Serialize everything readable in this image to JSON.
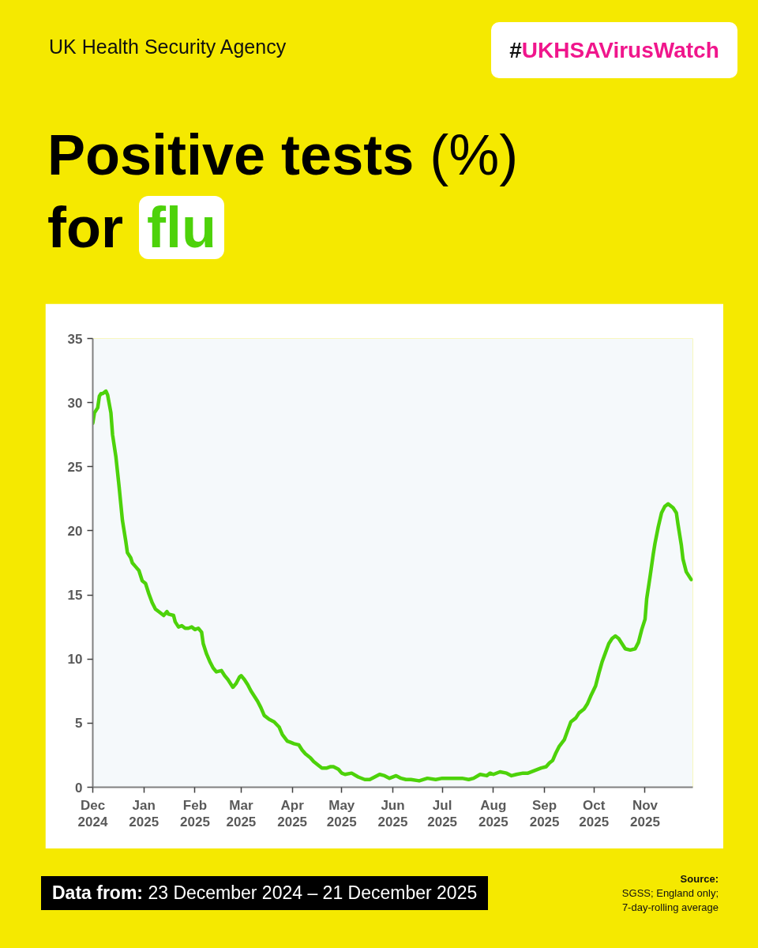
{
  "chart_data": {
    "type": "line",
    "title": "Positive tests (%)\nfor flu",
    "annotations": [
      "UK Health Security Agency",
      "#UKHSAVirusWatch",
      "Data from: 23 December 2024 – 21 December 2025",
      "Source:\nSGSS; England only;\n7-day-rolling average"
    ],
    "x": [
      "2024-12-01",
      "2024-12-02",
      "2024-12-04",
      "2024-12-05",
      "2024-12-06",
      "2024-12-07",
      "2024-12-09",
      "2024-12-10",
      "2024-12-12",
      "2024-12-13",
      "2024-12-15",
      "2024-12-17",
      "2024-12-18",
      "2024-12-19",
      "2024-12-21",
      "2024-12-22",
      "2024-12-24",
      "2024-12-25",
      "2024-12-27",
      "2024-12-29",
      "2024-12-31",
      "2025-01-02",
      "2025-01-04",
      "2025-01-06",
      "2025-01-08",
      "2025-01-11",
      "2025-01-13",
      "2025-01-15",
      "2025-01-16",
      "2025-01-19",
      "2025-01-20",
      "2025-01-22",
      "2025-01-24",
      "2025-01-26",
      "2025-01-28",
      "2025-01-30",
      "2025-02-01",
      "2025-02-03",
      "2025-02-05",
      "2025-02-06",
      "2025-02-08",
      "2025-02-10",
      "2025-02-12",
      "2025-02-14",
      "2025-02-17",
      "2025-02-19",
      "2025-02-21",
      "2025-02-23",
      "2025-02-24",
      "2025-02-26",
      "2025-02-28",
      "2025-03-01",
      "2025-03-03",
      "2025-03-05",
      "2025-03-07",
      "2025-03-09",
      "2025-03-11",
      "2025-03-13",
      "2025-03-15",
      "2025-03-18",
      "2025-03-21",
      "2025-03-24",
      "2025-03-26",
      "2025-03-29",
      "2025-03-31",
      "2025-04-02",
      "2025-04-05",
      "2025-04-07",
      "2025-04-09",
      "2025-04-12",
      "2025-04-14",
      "2025-04-17",
      "2025-04-19",
      "2025-04-22",
      "2025-04-24",
      "2025-04-26",
      "2025-04-29",
      "2025-05-01",
      "2025-05-03",
      "2025-05-07",
      "2025-05-11",
      "2025-05-15",
      "2025-05-18",
      "2025-05-21",
      "2025-05-24",
      "2025-05-27",
      "2025-05-30",
      "2025-06-03",
      "2025-06-06",
      "2025-06-09",
      "2025-06-12",
      "2025-06-17",
      "2025-06-22",
      "2025-06-27",
      "2025-07-01",
      "2025-07-06",
      "2025-07-13",
      "2025-07-17",
      "2025-07-20",
      "2025-07-24",
      "2025-07-28",
      "2025-07-30",
      "2025-08-01",
      "2025-08-05",
      "2025-08-09",
      "2025-08-12",
      "2025-08-15",
      "2025-08-19",
      "2025-08-22",
      "2025-08-26",
      "2025-08-30",
      "2025-09-02",
      "2025-09-04",
      "2025-09-06",
      "2025-09-08",
      "2025-09-10",
      "2025-09-13",
      "2025-09-15",
      "2025-09-17",
      "2025-09-20",
      "2025-09-22",
      "2025-09-25",
      "2025-09-27",
      "2025-09-29",
      "2025-10-02",
      "2025-10-04",
      "2025-10-06",
      "2025-10-08",
      "2025-10-10",
      "2025-10-12",
      "2025-10-14",
      "2025-10-16",
      "2025-10-18",
      "2025-10-20",
      "2025-10-23",
      "2025-10-26",
      "2025-10-28",
      "2025-10-30",
      "2025-11-01",
      "2025-11-02",
      "2025-11-04",
      "2025-11-06",
      "2025-11-07",
      "2025-11-09",
      "2025-11-11",
      "2025-11-13",
      "2025-11-15",
      "2025-11-18",
      "2025-11-20",
      "2025-11-21",
      "2025-11-23",
      "2025-11-24",
      "2025-11-26",
      "2025-11-27",
      "2025-11-29"
    ],
    "series": [
      {
        "color": "#4dd20a",
        "values": [
          28.4,
          29.2,
          29.6,
          30.5,
          30.7,
          30.7,
          30.9,
          30.6,
          29.2,
          27.5,
          25.8,
          23.4,
          22.1,
          20.8,
          19.2,
          18.3,
          17.9,
          17.5,
          17.2,
          16.9,
          16.1,
          15.9,
          15.1,
          14.4,
          13.9,
          13.6,
          13.4,
          13.7,
          13.5,
          13.4,
          12.9,
          12.5,
          12.6,
          12.4,
          12.4,
          12.5,
          12.3,
          12.4,
          12.1,
          11.2,
          10.4,
          9.8,
          9.3,
          9.0,
          9.1,
          8.7,
          8.4,
          8.0,
          7.8,
          8.1,
          8.6,
          8.7,
          8.4,
          8.0,
          7.5,
          7.1,
          6.7,
          6.2,
          5.6,
          5.3,
          5.1,
          4.7,
          4.1,
          3.6,
          3.5,
          3.4,
          3.3,
          2.9,
          2.6,
          2.3,
          2.0,
          1.7,
          1.5,
          1.5,
          1.6,
          1.6,
          1.4,
          1.1,
          1.0,
          1.1,
          0.8,
          0.6,
          0.6,
          0.8,
          1.0,
          0.9,
          0.7,
          0.9,
          0.7,
          0.6,
          0.6,
          0.5,
          0.7,
          0.6,
          0.7,
          0.7,
          0.7,
          0.6,
          0.7,
          1.0,
          0.9,
          1.1,
          1.0,
          1.2,
          1.1,
          0.9,
          1.0,
          1.1,
          1.1,
          1.3,
          1.5,
          1.6,
          1.9,
          2.1,
          2.7,
          3.2,
          3.7,
          4.4,
          5.1,
          5.4,
          5.8,
          6.1,
          6.5,
          7.1,
          7.9,
          8.9,
          9.8,
          10.5,
          11.2,
          11.6,
          11.8,
          11.6,
          11.2,
          10.8,
          10.7,
          10.8,
          11.3,
          12.3,
          13.1,
          14.7,
          16.4,
          18.2,
          19.0,
          20.3,
          21.4,
          21.9,
          22.1,
          21.8,
          21.4,
          20.5,
          18.9,
          17.8,
          16.8,
          16.6,
          16.2
        ]
      }
    ],
    "xlim": [
      "2024-12-01",
      "2025-11-30"
    ],
    "xticks": [
      {
        "value": "2024-12-01",
        "label": "Dec\n2024"
      },
      {
        "value": "2025-01-01",
        "label": "Jan\n2025"
      },
      {
        "value": "2025-02-01",
        "label": "Feb\n2025"
      },
      {
        "value": "2025-03-01",
        "label": "Mar\n2025"
      },
      {
        "value": "2025-04-01",
        "label": "Apr\n2025"
      },
      {
        "value": "2025-05-01",
        "label": "May\n2025"
      },
      {
        "value": "2025-06-01",
        "label": "Jun\n2025"
      },
      {
        "value": "2025-07-01",
        "label": "Jul\n2025"
      },
      {
        "value": "2025-08-01",
        "label": "Aug\n2025"
      },
      {
        "value": "2025-09-01",
        "label": "Sep\n2025"
      },
      {
        "value": "2025-10-01",
        "label": "Oct\n2025"
      },
      {
        "value": "2025-11-01",
        "label": "Nov\n2025"
      }
    ],
    "ylim": [
      0,
      35
    ],
    "yticks": [
      0,
      5,
      10,
      15,
      20,
      25,
      30,
      35
    ]
  }
}
